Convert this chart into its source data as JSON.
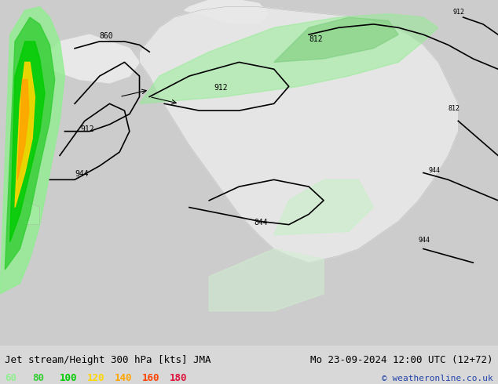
{
  "title_left": "Jet stream/Height 300 hPa [kts] JMA",
  "title_right": "Mo 23-09-2024 12:00 UTC (12+72)",
  "copyright": "© weatheronline.co.uk",
  "legend_values": [
    60,
    80,
    100,
    120,
    140,
    160,
    180
  ],
  "legend_colors": [
    "#90ee90",
    "#32cd32",
    "#00cc00",
    "#ffd700",
    "#ffa500",
    "#ff4500",
    "#dc143c"
  ],
  "bg_color": "#d8d8d8",
  "ocean_color": "#cccccc",
  "land_color": "#e8e8e8",
  "contour_color": "#000000",
  "figsize": [
    6.34,
    4.9
  ],
  "dpi": 100
}
